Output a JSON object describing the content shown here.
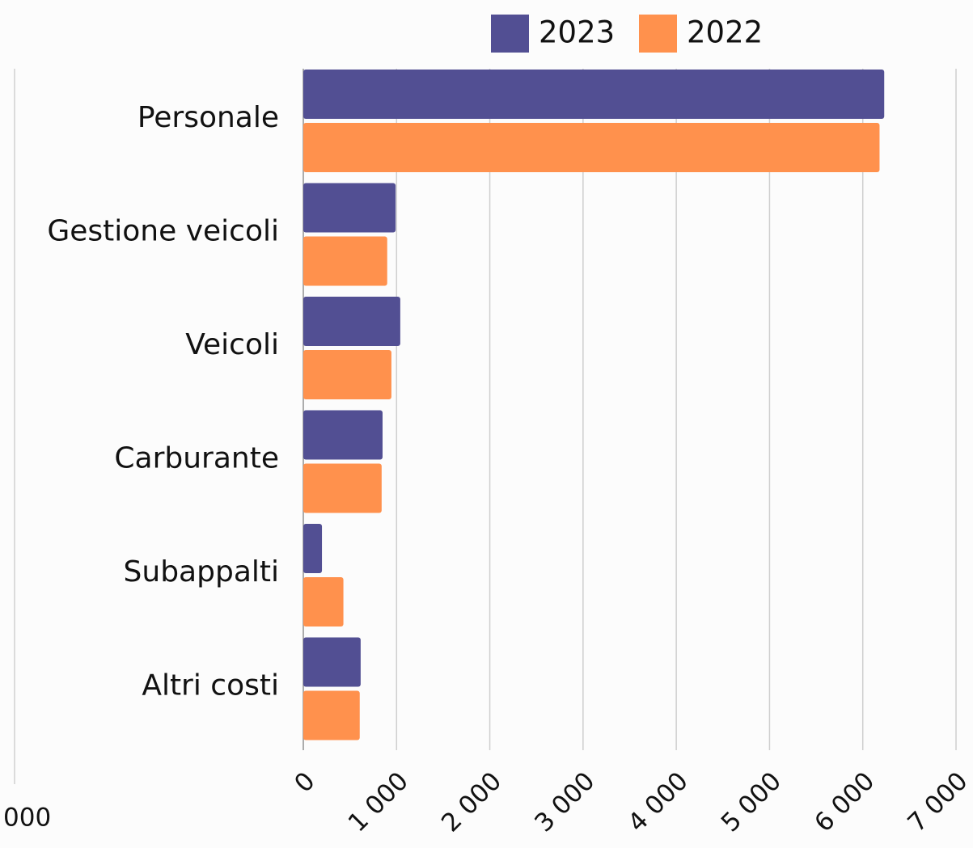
{
  "chart_data": {
    "type": "bar",
    "orientation": "horizontal",
    "categories": [
      "Personale",
      "Gestione veicoli",
      "Veicoli",
      "Carburante",
      "Subappalti",
      "Altri costi"
    ],
    "series": [
      {
        "name": "2023",
        "color": "#524f93",
        "values": [
          6230,
          990,
          1040,
          850,
          200,
          615
        ]
      },
      {
        "name": "2022",
        "color": "#ff914d",
        "values": [
          6180,
          900,
          945,
          840,
          430,
          605
        ]
      }
    ],
    "xlim": [
      0,
      7000
    ],
    "xticks": [
      0,
      {
        "value": 1000,
        "label": "1 000"
      },
      {
        "value": 2000,
        "label": "2 000"
      },
      {
        "value": 3000,
        "label": "3 000"
      },
      {
        "value": 4000,
        "label": "4 000"
      },
      {
        "value": 5000,
        "label": "5 000"
      },
      {
        "value": 6000,
        "label": "6 000"
      },
      {
        "value": 7000,
        "label": "7 000"
      }
    ],
    "grid": true,
    "legend": "top",
    "clipped_label": "000"
  }
}
